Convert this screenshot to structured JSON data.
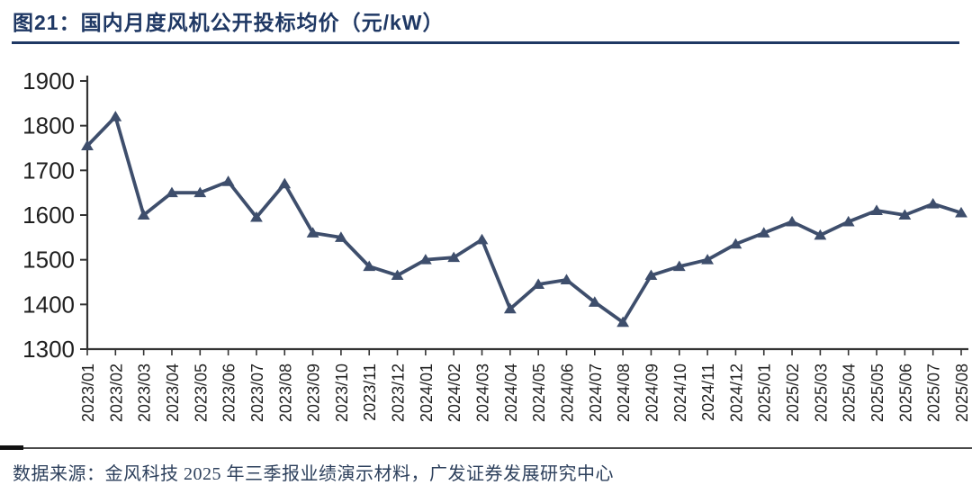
{
  "header": {
    "title": "图21：国内月度风机公开投标均价（元/kW）"
  },
  "footer": {
    "source": "数据来源：金风科技 2025 年三季报业绩演示材料，广发证券发展研究中心"
  },
  "colors": {
    "line": "#3E4E6C",
    "title": "#1F3864",
    "rule": "#1F3864",
    "axis": "#333333",
    "axis_text": "#1F1F1F",
    "source_text": "#2D405C"
  },
  "chart_data": {
    "type": "line",
    "title": "国内月度风机公开投标均价（元/kW）",
    "xlabel": "",
    "ylabel": "",
    "ylim": [
      1300,
      1900
    ],
    "yticks": [
      1300,
      1400,
      1500,
      1600,
      1700,
      1800,
      1900
    ],
    "grid": false,
    "legend": false,
    "marker": "triangle-up",
    "categories": [
      "2023/01",
      "2023/02",
      "2023/03",
      "2023/04",
      "2023/05",
      "2023/06",
      "2023/07",
      "2023/08",
      "2023/09",
      "2023/10",
      "2023/11",
      "2023/12",
      "2024/01",
      "2024/02",
      "2024/03",
      "2024/04",
      "2024/05",
      "2024/06",
      "2024/07",
      "2024/08",
      "2024/09",
      "2024/10",
      "2024/11",
      "2024/12",
      "2025/01",
      "2025/02",
      "2025/03",
      "2025/04",
      "2025/05",
      "2025/06",
      "2025/07",
      "2025/08"
    ],
    "series": [
      {
        "name": "国内月度风机公开投标均价（元/kW）",
        "values": [
          1755,
          1820,
          1600,
          1650,
          1650,
          1675,
          1595,
          1670,
          1560,
          1550,
          1485,
          1465,
          1500,
          1505,
          1545,
          1390,
          1445,
          1455,
          1405,
          1360,
          1465,
          1485,
          1500,
          1535,
          1560,
          1585,
          1555,
          1585,
          1610,
          1600,
          1625,
          1605
        ]
      }
    ]
  }
}
